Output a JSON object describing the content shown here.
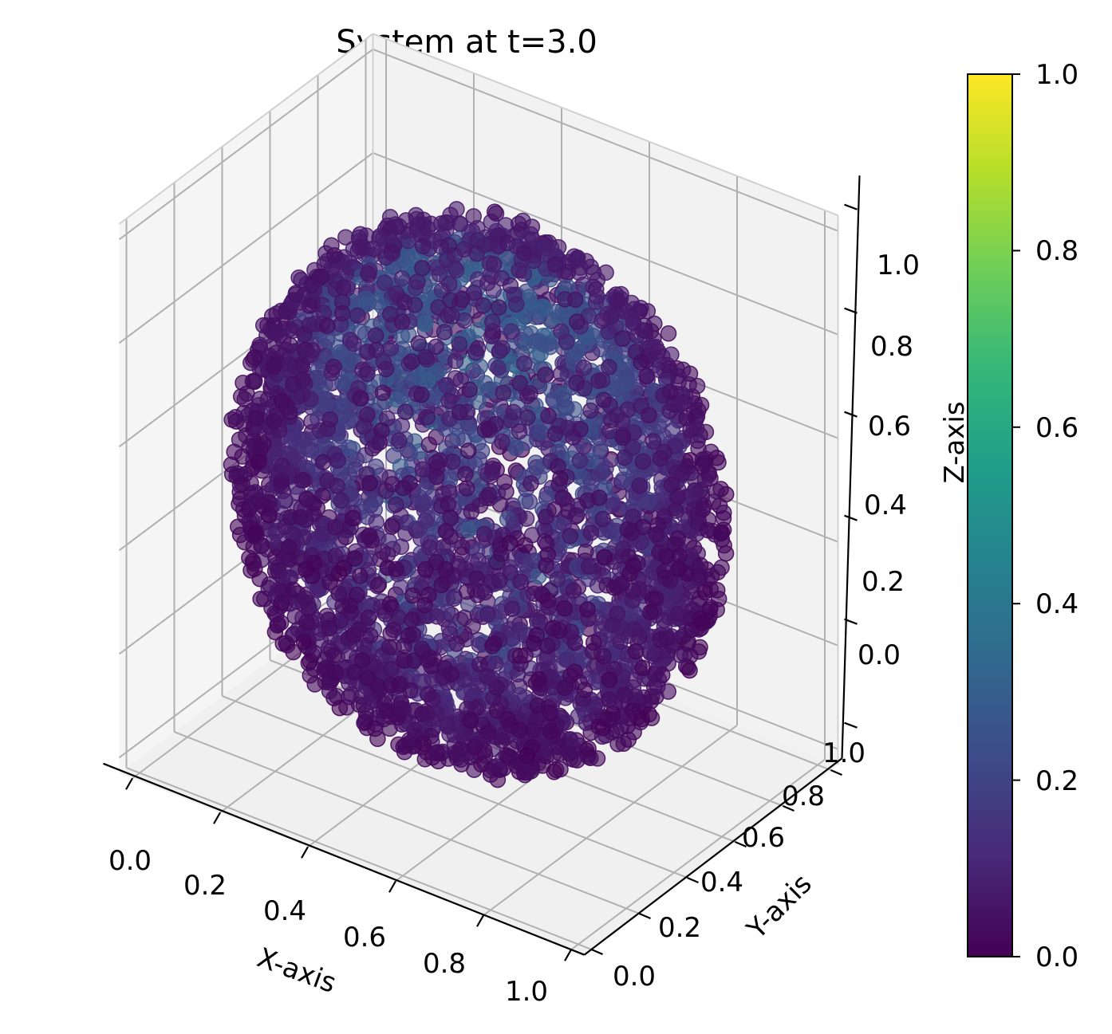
{
  "chart_data": {
    "type": "scatter",
    "projection": "3d",
    "title": "System at t=3.0",
    "xlabel": "X-axis",
    "ylabel": "Y-axis",
    "zlabel": "Z-axis",
    "xlim": [
      0,
      1
    ],
    "ylim": [
      0,
      1
    ],
    "zlim": [
      0,
      1
    ],
    "x_ticks": [
      "0.0",
      "0.2",
      "0.4",
      "0.6",
      "0.8",
      "1.0"
    ],
    "y_ticks": [
      "0.0",
      "0.2",
      "0.4",
      "0.6",
      "0.8",
      "1.0"
    ],
    "z_ticks": [
      "0.0",
      "0.2",
      "0.4",
      "0.6",
      "0.8",
      "1.0"
    ],
    "grid": true,
    "colormap": "viridis",
    "color_range": [
      0,
      1
    ],
    "colorbar_ticks": [
      "0.0",
      "0.2",
      "0.4",
      "0.6",
      "0.8",
      "1.0"
    ],
    "colorbar_colors": [
      "#440154",
      "#482878",
      "#3e4a89",
      "#31688e",
      "#26828e",
      "#1f9e89",
      "#35b779",
      "#6ece58",
      "#b5de2b",
      "#fde725"
    ],
    "points_description": "approximately 4000 particles filling a roughly spherical cluster centered near (0.5, 0.5, 0.5) with radius about 0.5; value is low (about 0.0–0.1) near the outer shell and higher (up to about 0.5) in the interior near the top",
    "point_count_estimate": 4000,
    "value_range_observed": [
      0.0,
      0.5
    ],
    "marker_alpha": 0.6
  }
}
